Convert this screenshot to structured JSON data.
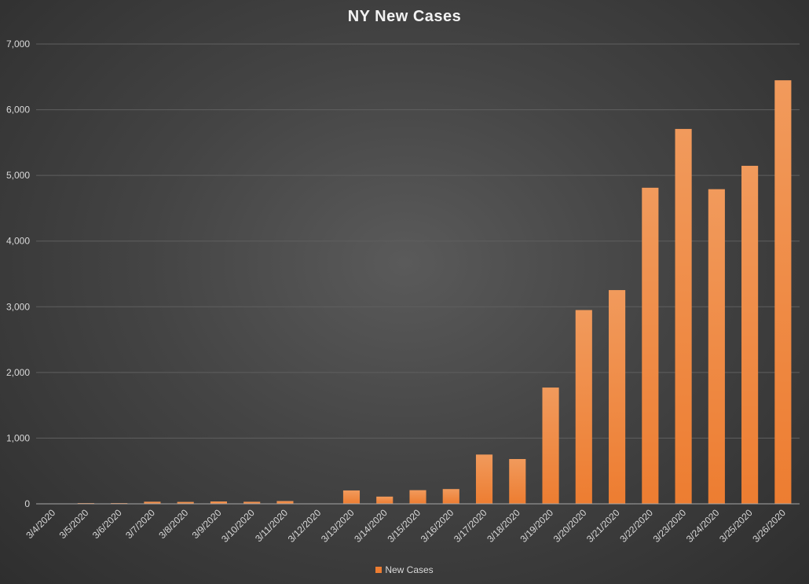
{
  "chart_data": {
    "type": "bar",
    "title": "NY New Cases",
    "xlabel": "",
    "ylabel": "",
    "categories": [
      "3/4/2020",
      "3/5/2020",
      "3/6/2020",
      "3/7/2020",
      "3/8/2020",
      "3/9/2020",
      "3/10/2020",
      "3/11/2020",
      "3/12/2020",
      "3/13/2020",
      "3/14/2020",
      "3/15/2020",
      "3/16/2020",
      "3/17/2020",
      "3/18/2020",
      "3/19/2020",
      "3/20/2020",
      "3/21/2020",
      "3/22/2020",
      "3/23/2020",
      "3/24/2020",
      "3/25/2020",
      "3/26/2020"
    ],
    "series": [
      {
        "name": "New Cases",
        "color": "#ed7d31",
        "values": [
          0,
          11,
          11,
          32,
          29,
          36,
          31,
          42,
          0,
          204,
          110,
          208,
          225,
          750,
          682,
          1770,
          2950,
          3254,
          4812,
          5707,
          4790,
          5146,
          6448
        ]
      }
    ],
    "ylim": [
      0,
      7000
    ],
    "yticks": [
      0,
      1000,
      2000,
      3000,
      4000,
      5000,
      6000,
      7000
    ],
    "ytick_labels": [
      "0",
      "1,000",
      "2,000",
      "3,000",
      "4,000",
      "5,000",
      "6,000",
      "7,000"
    ],
    "grid": true,
    "legend_position": "bottom"
  }
}
